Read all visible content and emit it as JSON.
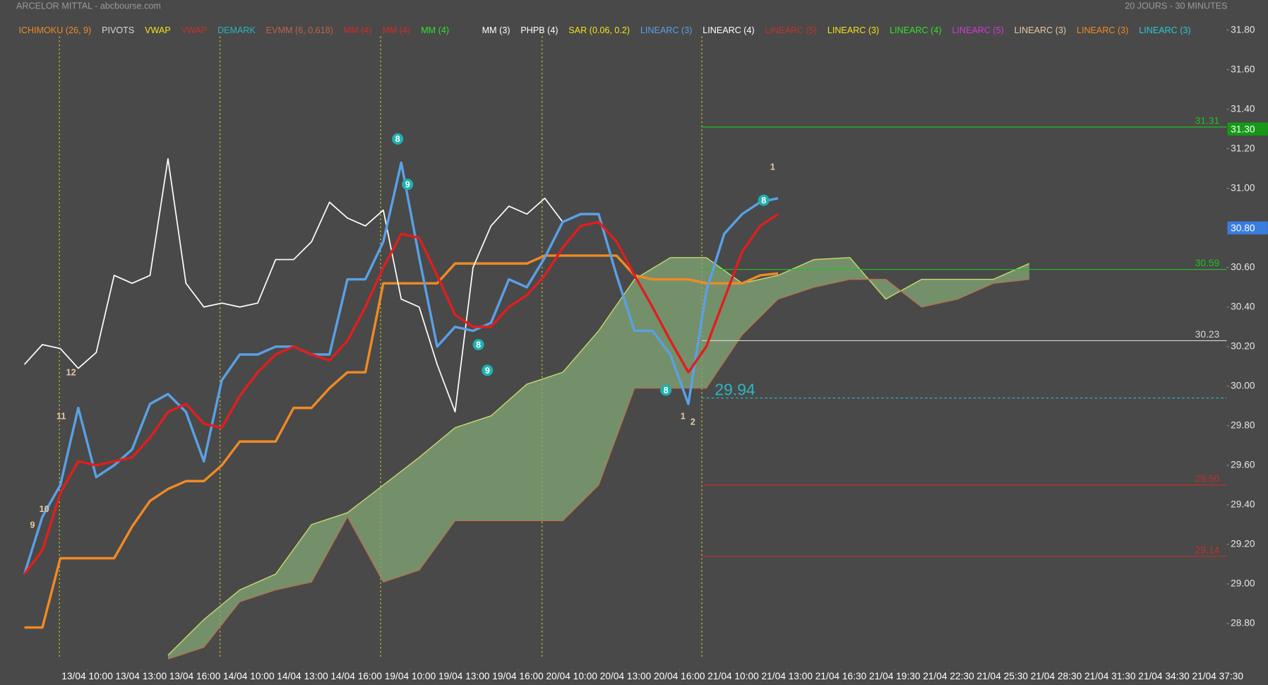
{
  "chart_data": {
    "type": "line",
    "title": "ARCELOR MITTAL - abcbourse.com",
    "subtitle": "20 JOURS - 30 MINUTES",
    "indicators": [
      [
        {
          "name": "ICHIMOKU (26, 9)",
          "color": "#f08a24"
        },
        {
          "name": "PIVOTS",
          "color": "#d8d8d8"
        },
        {
          "name": "VWAP",
          "color": "#f2e21b"
        },
        {
          "name": "VWAP",
          "color": "#c2322a"
        },
        {
          "name": "DEMARK",
          "color": "#2bb3bd"
        },
        {
          "name": "EVMM (6, 0.618)",
          "color": "#c0604e"
        },
        {
          "name": "MM (4)",
          "color": "#d42a2a"
        },
        {
          "name": "MM (4)",
          "color": "#d42a2a"
        },
        {
          "name": "MM (4)",
          "color": "#35e02c"
        }
      ],
      [
        {
          "name": "MM (3)",
          "color": "#ffffff"
        },
        {
          "name": "PHPB (4)",
          "color": "#ffffff"
        },
        {
          "name": "SAR (0.06, 0.2)",
          "color": "#f2e21b"
        },
        {
          "name": "LINEARC (3)",
          "color": "#5aa0e6"
        },
        {
          "name": "LINEARC (4)",
          "color": "#ffffff"
        },
        {
          "name": "LINEARC (5)",
          "color": "#c2322a"
        },
        {
          "name": "LINEARC (3)",
          "color": "#f2e21b"
        },
        {
          "name": "LINEARC (4)",
          "color": "#35e02c"
        },
        {
          "name": "LINEARC (5)",
          "color": "#d23ad6"
        },
        {
          "name": "LINEARC (3)",
          "color": "#e8caa4"
        },
        {
          "name": "LINEARC (3)",
          "color": "#f08a24"
        },
        {
          "name": "LINEARC (3)",
          "color": "#2cc8d8"
        }
      ]
    ],
    "xlim": [
      -1,
      134
    ],
    "ylim": [
      28.62,
      31.85
    ],
    "xticks": [
      {
        "value": 7,
        "label": "13/04 10:00"
      },
      {
        "value": 13,
        "label": "13/04 13:00"
      },
      {
        "value": 19,
        "label": "13/04 16:00"
      },
      {
        "value": 25,
        "label": "14/04 10:00"
      },
      {
        "value": 31,
        "label": "14/04 13:00"
      },
      {
        "value": 37,
        "label": "14/04 16:00"
      },
      {
        "value": 43,
        "label": "19/04 10:00"
      },
      {
        "value": 49,
        "label": "19/04 13:00"
      },
      {
        "value": 55,
        "label": "19/04 16:00"
      },
      {
        "value": 61,
        "label": "20/04 10:00"
      },
      {
        "value": 67,
        "label": "20/04 13:00"
      },
      {
        "value": 73,
        "label": "20/04 16:00"
      },
      {
        "value": 79,
        "label": "21/04 10:00"
      },
      {
        "value": 85,
        "label": "21/04 13:00"
      },
      {
        "value": 91,
        "label": "21/04 16:30"
      },
      {
        "value": 97,
        "label": "21/04 19:30"
      },
      {
        "value": 103,
        "label": "21/04 22:30"
      },
      {
        "value": 109,
        "label": "21/04 25:30"
      },
      {
        "value": 115,
        "label": "21/04 28:30"
      },
      {
        "value": 121,
        "label": "21/04 31:30"
      },
      {
        "value": 127,
        "label": "21/04 34:30"
      },
      {
        "value": 133,
        "label": "21/04 37:30"
      }
    ],
    "yticks": [
      {
        "value": 28.8,
        "label": "28.80"
      },
      {
        "value": 29,
        "label": "29.00"
      },
      {
        "value": 29.2,
        "label": "29.20"
      },
      {
        "value": 29.4,
        "label": "29.40"
      },
      {
        "value": 29.6,
        "label": "29.60"
      },
      {
        "value": 29.8,
        "label": "29.80"
      },
      {
        "value": 30,
        "label": "30.00"
      },
      {
        "value": 30.2,
        "label": "30.20"
      },
      {
        "value": 30.4,
        "label": "30.40"
      },
      {
        "value": 30.6,
        "label": "30.60"
      },
      {
        "value": 30.8,
        "label": "30.80"
      },
      {
        "value": 31,
        "label": "31.00"
      },
      {
        "value": 31.2,
        "label": "31.20"
      },
      {
        "value": 31.4,
        "label": "31.40"
      },
      {
        "value": 31.6,
        "label": "31.60"
      },
      {
        "value": 31.8,
        "label": "31.80"
      }
    ],
    "day_separators": [
      3.9,
      21.8,
      39.7,
      57.7,
      75.5
    ],
    "cloud": {
      "top_color": "#c8dc6a",
      "bottom_color": "#b8704e",
      "fill": "#7fa374",
      "x": [
        16,
        20,
        24,
        28,
        32,
        36,
        40,
        44,
        48,
        52,
        56,
        60,
        64,
        68,
        72,
        76,
        80,
        84,
        88,
        92,
        96,
        100,
        104,
        108,
        112
      ],
      "top": [
        28.64,
        28.82,
        28.97,
        29.05,
        29.3,
        29.36,
        29.5,
        29.64,
        29.79,
        29.85,
        30.01,
        30.07,
        30.28,
        30.54,
        30.65,
        30.65,
        30.52,
        30.56,
        30.64,
        30.65,
        30.44,
        30.54,
        30.54,
        30.54,
        30.62
      ],
      "bottom": [
        28.62,
        28.68,
        28.91,
        28.97,
        29.01,
        29.34,
        29.01,
        29.07,
        29.32,
        29.32,
        29.32,
        29.32,
        29.5,
        29.99,
        29.99,
        29.99,
        30.26,
        30.44,
        30.5,
        30.54,
        30.54,
        30.4,
        30.44,
        30.52,
        30.54
      ]
    },
    "series": [
      {
        "color": "#f08a24",
        "width": 3,
        "x": [
          0,
          2,
          4,
          6,
          8,
          10,
          12,
          14,
          16,
          18,
          20,
          22,
          24,
          26,
          28,
          30,
          32,
          34,
          36,
          38,
          40,
          42,
          44,
          46,
          48,
          50,
          52,
          54,
          56,
          58,
          60,
          62,
          64,
          66,
          68,
          70,
          72,
          74,
          76,
          78,
          80,
          82,
          84
        ],
        "values": [
          28.78,
          28.78,
          29.13,
          29.13,
          29.13,
          29.13,
          29.29,
          29.42,
          29.48,
          29.52,
          29.52,
          29.6,
          29.72,
          29.72,
          29.72,
          29.89,
          29.89,
          29.99,
          30.07,
          30.07,
          30.52,
          30.52,
          30.52,
          30.52,
          30.62,
          30.62,
          30.62,
          30.62,
          30.62,
          30.66,
          30.66,
          30.66,
          30.66,
          30.66,
          30.56,
          30.54,
          30.54,
          30.54,
          30.52,
          30.52,
          30.52,
          30.56,
          30.57
        ]
      },
      {
        "color": "#ffffff",
        "width": 1.5,
        "x": [
          0,
          2,
          4,
          6,
          8,
          10,
          12,
          14,
          16,
          18,
          20,
          22,
          24,
          26,
          28,
          30,
          32,
          34,
          36,
          38,
          40,
          42,
          44,
          46,
          48,
          50,
          52,
          54,
          56,
          58,
          60
        ],
        "values": [
          30.11,
          30.21,
          30.19,
          30.09,
          30.17,
          30.56,
          30.52,
          30.56,
          31.15,
          30.52,
          30.4,
          30.42,
          30.4,
          30.42,
          30.64,
          30.64,
          30.73,
          30.93,
          30.85,
          30.81,
          30.89,
          30.44,
          30.4,
          30.11,
          29.87,
          30.6,
          30.81,
          30.91,
          30.87,
          30.95,
          30.83
        ]
      },
      {
        "color": "#5aa0e6",
        "width": 3,
        "x": [
          0,
          2,
          4,
          6,
          8,
          10,
          12,
          14,
          16,
          18,
          20,
          22,
          24,
          26,
          28,
          30,
          32,
          34,
          36,
          38,
          40,
          42,
          44,
          46,
          48,
          50,
          52,
          54,
          56,
          58,
          60,
          62,
          64,
          66,
          68,
          70,
          72,
          74,
          76,
          78,
          80,
          82,
          84
        ],
        "values": [
          29.05,
          29.34,
          29.5,
          29.89,
          29.54,
          29.6,
          29.68,
          29.91,
          29.96,
          29.87,
          29.62,
          30.03,
          30.16,
          30.16,
          30.2,
          30.2,
          30.16,
          30.16,
          30.54,
          30.54,
          30.73,
          31.13,
          30.65,
          30.2,
          30.3,
          30.28,
          30.32,
          30.54,
          30.5,
          30.65,
          30.83,
          30.87,
          30.87,
          30.56,
          30.28,
          30.28,
          30.16,
          29.91,
          30.48,
          30.77,
          30.87,
          30.93,
          30.95
        ]
      },
      {
        "color": "#e01e1e",
        "width": 3,
        "x": [
          0,
          2,
          4,
          6,
          8,
          10,
          12,
          14,
          16,
          18,
          20,
          22,
          24,
          26,
          28,
          30,
          32,
          34,
          36,
          38,
          40,
          42,
          44,
          46,
          48,
          50,
          52,
          54,
          56,
          58,
          60,
          62,
          64,
          66,
          68,
          70,
          72,
          74,
          76,
          78,
          80,
          82,
          84
        ],
        "values": [
          29.05,
          29.17,
          29.46,
          29.62,
          29.6,
          29.62,
          29.64,
          29.74,
          29.87,
          29.91,
          29.81,
          29.79,
          29.95,
          30.07,
          30.16,
          30.2,
          30.16,
          30.13,
          30.23,
          30.4,
          30.6,
          30.77,
          30.75,
          30.56,
          30.36,
          30.3,
          30.3,
          30.4,
          30.46,
          30.56,
          30.7,
          30.81,
          30.83,
          30.73,
          30.56,
          30.4,
          30.23,
          30.07,
          30.2,
          30.44,
          30.68,
          30.81,
          30.87
        ]
      }
    ],
    "levels": [
      {
        "value": 31.31,
        "color": "#22c022"
      },
      {
        "value": 30.59,
        "color": "#22c022"
      },
      {
        "value": 30.23,
        "color": "#d8d8d8"
      },
      {
        "value": 29.94,
        "color": "#2ab6c0",
        "style": "dashed"
      },
      {
        "value": 29.5,
        "label": "29.50",
        "color": "#c0302a"
      },
      {
        "value": 29.14,
        "color": "#c0302a"
      }
    ],
    "price_boxes": [
      {
        "value": 31.3,
        "label": "31.30",
        "color": "#169a16"
      },
      {
        "value": 30.8,
        "label": "30.80",
        "color": "#3a7de0"
      }
    ],
    "counts": [
      {
        "text": "9",
        "x": 0.9,
        "y": 29.3
      },
      {
        "text": "10",
        "x": 2.2,
        "y": 29.38
      },
      {
        "text": "11",
        "x": 4.1,
        "y": 29.85
      },
      {
        "text": "12",
        "x": 5.2,
        "y": 30.07
      },
      {
        "text": "8",
        "x": 41.6,
        "y": 31.25,
        "circled": true
      },
      {
        "text": "9",
        "x": 42.7,
        "y": 31.02,
        "circled": true
      },
      {
        "text": "8",
        "x": 50.6,
        "y": 30.21,
        "circled": true
      },
      {
        "text": "9",
        "x": 51.6,
        "y": 30.08,
        "circled": true
      },
      {
        "text": "8",
        "x": 71.5,
        "y": 29.98,
        "circled": true
      },
      {
        "text": "1",
        "x": 73.4,
        "y": 29.85
      },
      {
        "text": "2",
        "x": 74.5,
        "y": 29.82
      },
      {
        "text": "8",
        "x": 82.4,
        "y": 30.94,
        "circled": true
      },
      {
        "text": "1",
        "x": 83.4,
        "y": 31.11
      }
    ]
  }
}
